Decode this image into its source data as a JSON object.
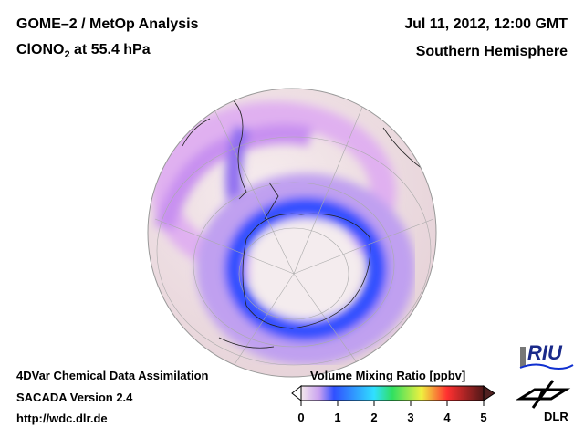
{
  "header": {
    "title_line1": "GOME–2 / MetOp Analysis",
    "species_main": "ClONO",
    "species_sub": "2",
    "species_rest": " at 55.4 hPa",
    "datetime": "Jul 11, 2012, 12:00 GMT",
    "region": "Southern Hemisphere"
  },
  "footer": {
    "line1": "4DVar Chemical Data Assimilation",
    "line2": "SACADA Version 2.4",
    "line3": "http://wdc.dlr.de"
  },
  "colorbar": {
    "title": "Volume Mixing Ratio [ppbv]",
    "ticks": [
      "0",
      "1",
      "2",
      "3",
      "4",
      "5"
    ],
    "range": [
      0,
      5
    ],
    "colors": [
      "#f4e8ec",
      "#c8a0f0",
      "#3050ff",
      "#30d0ff",
      "#30e060",
      "#f0f040",
      "#ff3030",
      "#501818"
    ]
  },
  "logos": {
    "riu": "RIU",
    "dlr": "DLR"
  }
}
